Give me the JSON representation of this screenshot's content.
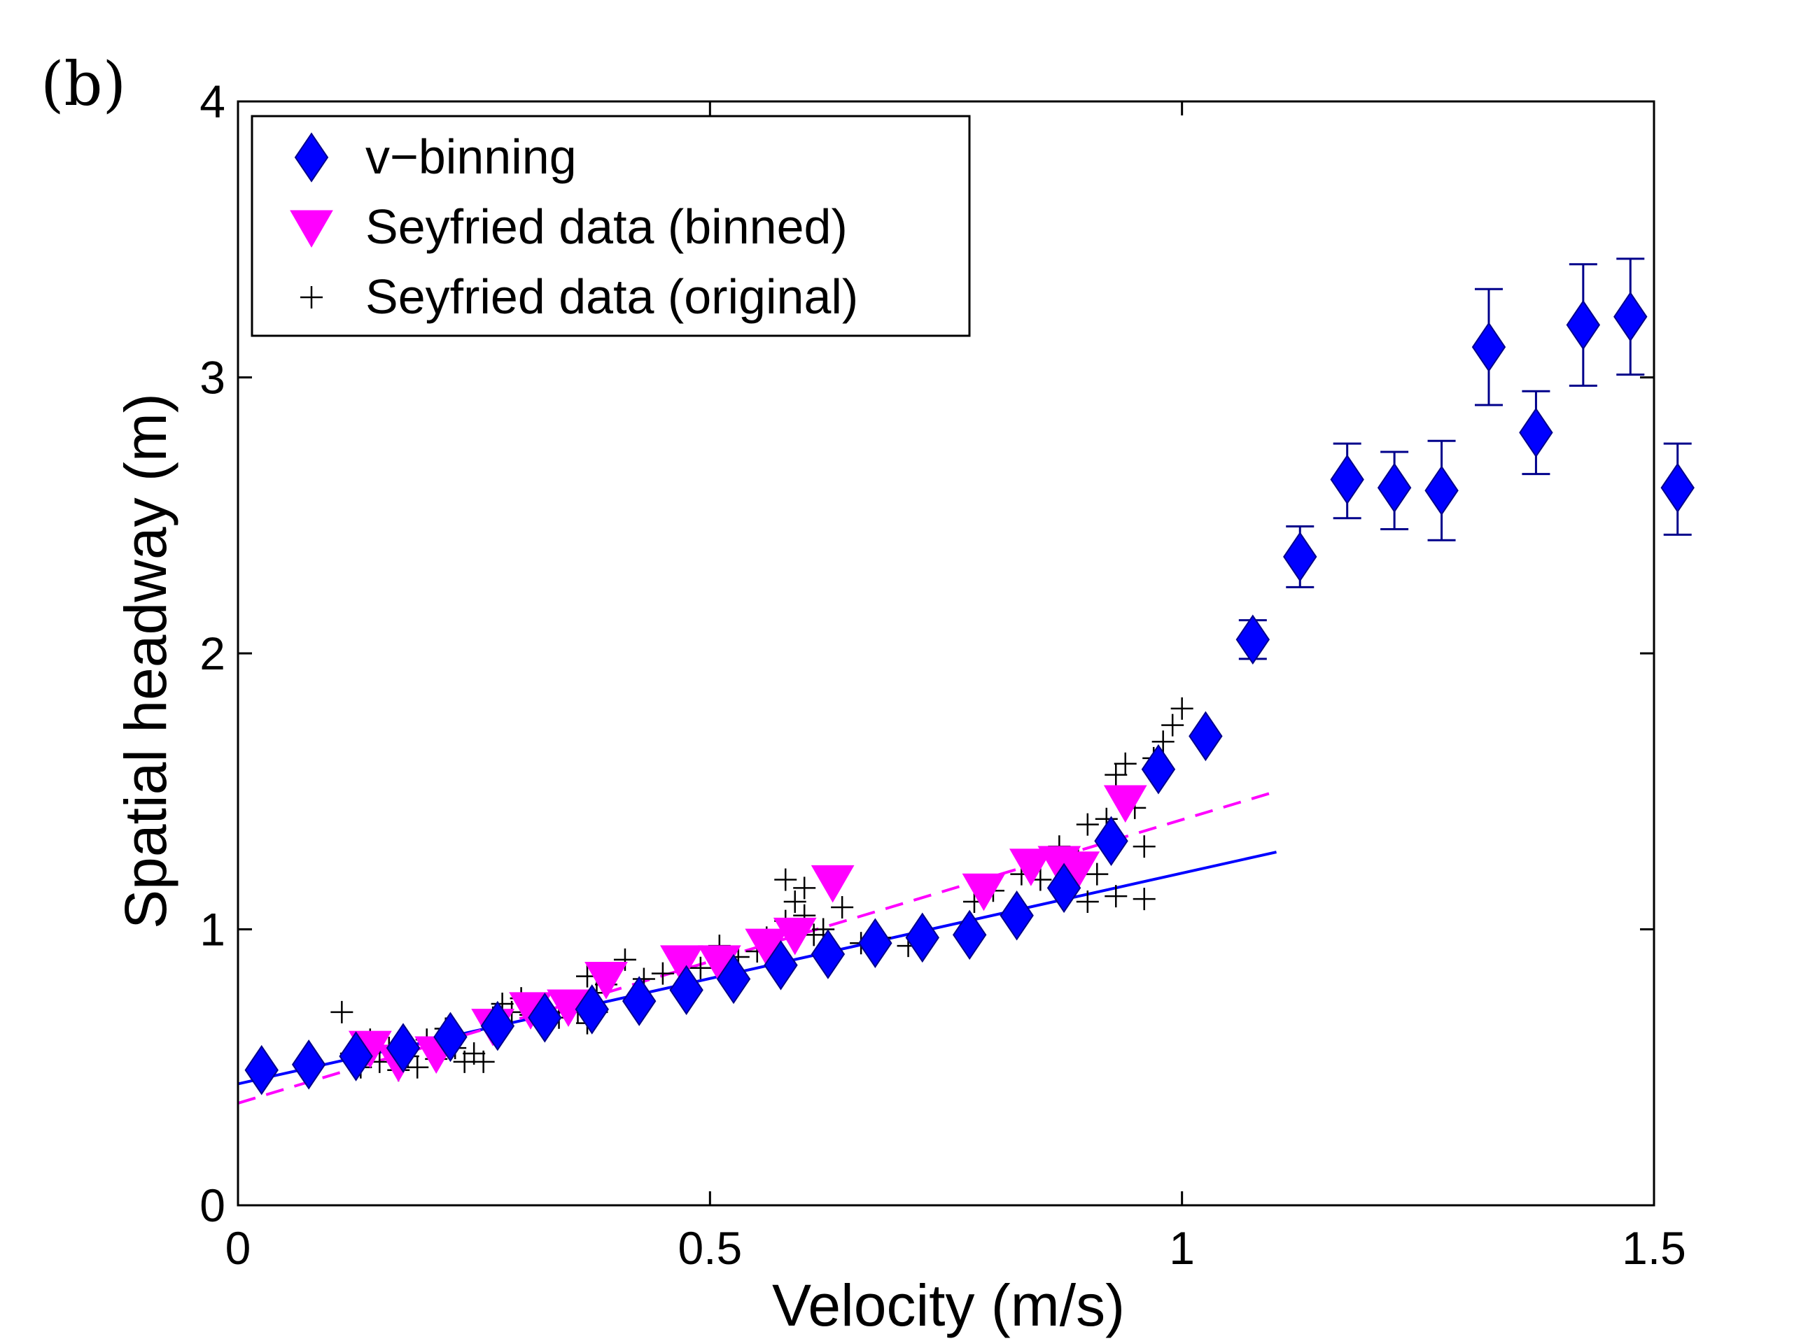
{
  "panel_label": "(b)",
  "colors": {
    "vbinning": "#0000ff",
    "vbinning_errorbar": "#00008b",
    "seyfried_binned": "#ff00ff",
    "seyfried_original": "#000000",
    "axes": "#000000"
  },
  "chart_data": {
    "type": "scatter",
    "xlabel": "Velocity (m/s)",
    "ylabel": "Spatial headway (m)",
    "xlim": [
      0,
      1.5
    ],
    "ylim": [
      0,
      4
    ],
    "xticks": [
      0,
      0.5,
      1,
      1.5
    ],
    "xtick_labels": [
      "0",
      "0.5",
      "1",
      "1.5"
    ],
    "yticks": [
      0,
      1,
      2,
      3,
      4
    ],
    "ytick_labels": [
      "0",
      "1",
      "2",
      "3",
      "4"
    ],
    "legend": {
      "location": "top-left",
      "entries": [
        {
          "label": "v−binning",
          "marker": "diamond",
          "series": "vbinning"
        },
        {
          "label": "Seyfried data (binned)",
          "marker": "triangle-down",
          "series": "seyfried_binned"
        },
        {
          "label": "Seyfried data (original)",
          "marker": "plus",
          "series": "seyfried_original"
        }
      ]
    },
    "series": [
      {
        "name": "v−binning",
        "key": "vbinning",
        "marker": "diamond",
        "points": [
          {
            "x": 0.025,
            "y": 0.49
          },
          {
            "x": 0.075,
            "y": 0.51
          },
          {
            "x": 0.125,
            "y": 0.54
          },
          {
            "x": 0.175,
            "y": 0.57
          },
          {
            "x": 0.225,
            "y": 0.61
          },
          {
            "x": 0.275,
            "y": 0.65
          },
          {
            "x": 0.325,
            "y": 0.68
          },
          {
            "x": 0.375,
            "y": 0.71
          },
          {
            "x": 0.425,
            "y": 0.74
          },
          {
            "x": 0.475,
            "y": 0.78
          },
          {
            "x": 0.525,
            "y": 0.82
          },
          {
            "x": 0.575,
            "y": 0.87
          },
          {
            "x": 0.625,
            "y": 0.91
          },
          {
            "x": 0.675,
            "y": 0.95
          },
          {
            "x": 0.725,
            "y": 0.97
          },
          {
            "x": 0.775,
            "y": 0.98
          },
          {
            "x": 0.825,
            "y": 1.05
          },
          {
            "x": 0.875,
            "y": 1.15
          },
          {
            "x": 0.925,
            "y": 1.32
          },
          {
            "x": 0.975,
            "y": 1.58
          },
          {
            "x": 1.025,
            "y": 1.7
          },
          {
            "x": 1.075,
            "y": 2.05,
            "err_low": 1.98,
            "err_high": 2.12
          },
          {
            "x": 1.125,
            "y": 2.35,
            "err_low": 2.24,
            "err_high": 2.46
          },
          {
            "x": 1.175,
            "y": 2.63,
            "err_low": 2.49,
            "err_high": 2.76
          },
          {
            "x": 1.225,
            "y": 2.6,
            "err_low": 2.45,
            "err_high": 2.73
          },
          {
            "x": 1.275,
            "y": 2.59,
            "err_low": 2.41,
            "err_high": 2.77
          },
          {
            "x": 1.325,
            "y": 3.11,
            "err_low": 2.9,
            "err_high": 3.32
          },
          {
            "x": 1.375,
            "y": 2.8,
            "err_low": 2.65,
            "err_high": 2.95
          },
          {
            "x": 1.425,
            "y": 3.19,
            "err_low": 2.97,
            "err_high": 3.41
          },
          {
            "x": 1.475,
            "y": 3.22,
            "err_low": 3.01,
            "err_high": 3.43
          },
          {
            "x": 1.525,
            "y": 2.6,
            "err_low": 2.43,
            "err_high": 2.76
          }
        ]
      },
      {
        "name": "Seyfried data (binned)",
        "key": "seyfried_binned",
        "marker": "triangle-down",
        "points": [
          {
            "x": 0.14,
            "y": 0.57
          },
          {
            "x": 0.17,
            "y": 0.52
          },
          {
            "x": 0.21,
            "y": 0.55
          },
          {
            "x": 0.27,
            "y": 0.65
          },
          {
            "x": 0.31,
            "y": 0.71
          },
          {
            "x": 0.35,
            "y": 0.72
          },
          {
            "x": 0.39,
            "y": 0.82
          },
          {
            "x": 0.47,
            "y": 0.88
          },
          {
            "x": 0.51,
            "y": 0.88
          },
          {
            "x": 0.56,
            "y": 0.94
          },
          {
            "x": 0.59,
            "y": 0.98
          },
          {
            "x": 0.63,
            "y": 1.17
          },
          {
            "x": 0.79,
            "y": 1.14
          },
          {
            "x": 0.84,
            "y": 1.23
          },
          {
            "x": 0.87,
            "y": 1.24
          },
          {
            "x": 0.89,
            "y": 1.22
          },
          {
            "x": 0.94,
            "y": 1.46
          }
        ]
      },
      {
        "name": "Seyfried data (original)",
        "key": "seyfried_original",
        "marker": "plus",
        "points": [
          {
            "x": 0.11,
            "y": 0.7
          },
          {
            "x": 0.12,
            "y": 0.55
          },
          {
            "x": 0.13,
            "y": 0.5
          },
          {
            "x": 0.14,
            "y": 0.6
          },
          {
            "x": 0.15,
            "y": 0.52
          },
          {
            "x": 0.16,
            "y": 0.57
          },
          {
            "x": 0.17,
            "y": 0.49
          },
          {
            "x": 0.18,
            "y": 0.54
          },
          {
            "x": 0.19,
            "y": 0.5
          },
          {
            "x": 0.2,
            "y": 0.6
          },
          {
            "x": 0.21,
            "y": 0.53
          },
          {
            "x": 0.22,
            "y": 0.64
          },
          {
            "x": 0.23,
            "y": 0.57
          },
          {
            "x": 0.24,
            "y": 0.52
          },
          {
            "x": 0.25,
            "y": 0.55
          },
          {
            "x": 0.26,
            "y": 0.52
          },
          {
            "x": 0.27,
            "y": 0.68
          },
          {
            "x": 0.28,
            "y": 0.73
          },
          {
            "x": 0.29,
            "y": 0.7
          },
          {
            "x": 0.3,
            "y": 0.75
          },
          {
            "x": 0.31,
            "y": 0.69
          },
          {
            "x": 0.32,
            "y": 0.72
          },
          {
            "x": 0.33,
            "y": 0.7
          },
          {
            "x": 0.34,
            "y": 0.68
          },
          {
            "x": 0.35,
            "y": 0.74
          },
          {
            "x": 0.36,
            "y": 0.7
          },
          {
            "x": 0.37,
            "y": 0.66
          },
          {
            "x": 0.38,
            "y": 0.7
          },
          {
            "x": 0.37,
            "y": 0.83
          },
          {
            "x": 0.38,
            "y": 0.77
          },
          {
            "x": 0.39,
            "y": 0.8
          },
          {
            "x": 0.41,
            "y": 0.89
          },
          {
            "x": 0.43,
            "y": 0.82
          },
          {
            "x": 0.45,
            "y": 0.84
          },
          {
            "x": 0.47,
            "y": 0.9
          },
          {
            "x": 0.49,
            "y": 0.86
          },
          {
            "x": 0.51,
            "y": 0.94
          },
          {
            "x": 0.53,
            "y": 0.9
          },
          {
            "x": 0.55,
            "y": 0.92
          },
          {
            "x": 0.56,
            "y": 0.97
          },
          {
            "x": 0.57,
            "y": 0.88
          },
          {
            "x": 0.58,
            "y": 1.03
          },
          {
            "x": 0.58,
            "y": 1.18
          },
          {
            "x": 0.59,
            "y": 1.1
          },
          {
            "x": 0.6,
            "y": 1.15
          },
          {
            "x": 0.6,
            "y": 1.05
          },
          {
            "x": 0.61,
            "y": 0.98
          },
          {
            "x": 0.62,
            "y": 1.0
          },
          {
            "x": 0.64,
            "y": 1.08
          },
          {
            "x": 0.66,
            "y": 0.95
          },
          {
            "x": 0.68,
            "y": 0.97
          },
          {
            "x": 0.71,
            "y": 0.94
          },
          {
            "x": 0.78,
            "y": 1.1
          },
          {
            "x": 0.8,
            "y": 1.14
          },
          {
            "x": 0.83,
            "y": 1.2
          },
          {
            "x": 0.85,
            "y": 1.18
          },
          {
            "x": 0.87,
            "y": 1.3
          },
          {
            "x": 0.88,
            "y": 1.16
          },
          {
            "x": 0.89,
            "y": 1.25
          },
          {
            "x": 0.9,
            "y": 1.38
          },
          {
            "x": 0.91,
            "y": 1.2
          },
          {
            "x": 0.92,
            "y": 1.4
          },
          {
            "x": 0.93,
            "y": 1.56
          },
          {
            "x": 0.94,
            "y": 1.6
          },
          {
            "x": 0.95,
            "y": 1.44
          },
          {
            "x": 0.96,
            "y": 1.3
          },
          {
            "x": 0.97,
            "y": 1.62
          },
          {
            "x": 0.98,
            "y": 1.68
          },
          {
            "x": 0.99,
            "y": 1.74
          },
          {
            "x": 1.0,
            "y": 1.8
          },
          {
            "x": 0.9,
            "y": 1.1
          },
          {
            "x": 0.93,
            "y": 1.12
          },
          {
            "x": 0.96,
            "y": 1.11
          },
          {
            "x": 0.98,
            "y": 1.58
          }
        ]
      }
    ],
    "fit_lines": [
      {
        "name": "v-binning fit",
        "style": "solid",
        "color_key": "vbinning",
        "x": [
          0,
          1.1
        ],
        "y": [
          0.44,
          1.28
        ]
      },
      {
        "name": "Seyfried fit",
        "style": "dashed",
        "color_key": "seyfried_binned",
        "x": [
          0,
          1.1
        ],
        "y": [
          0.37,
          1.5
        ]
      }
    ]
  }
}
